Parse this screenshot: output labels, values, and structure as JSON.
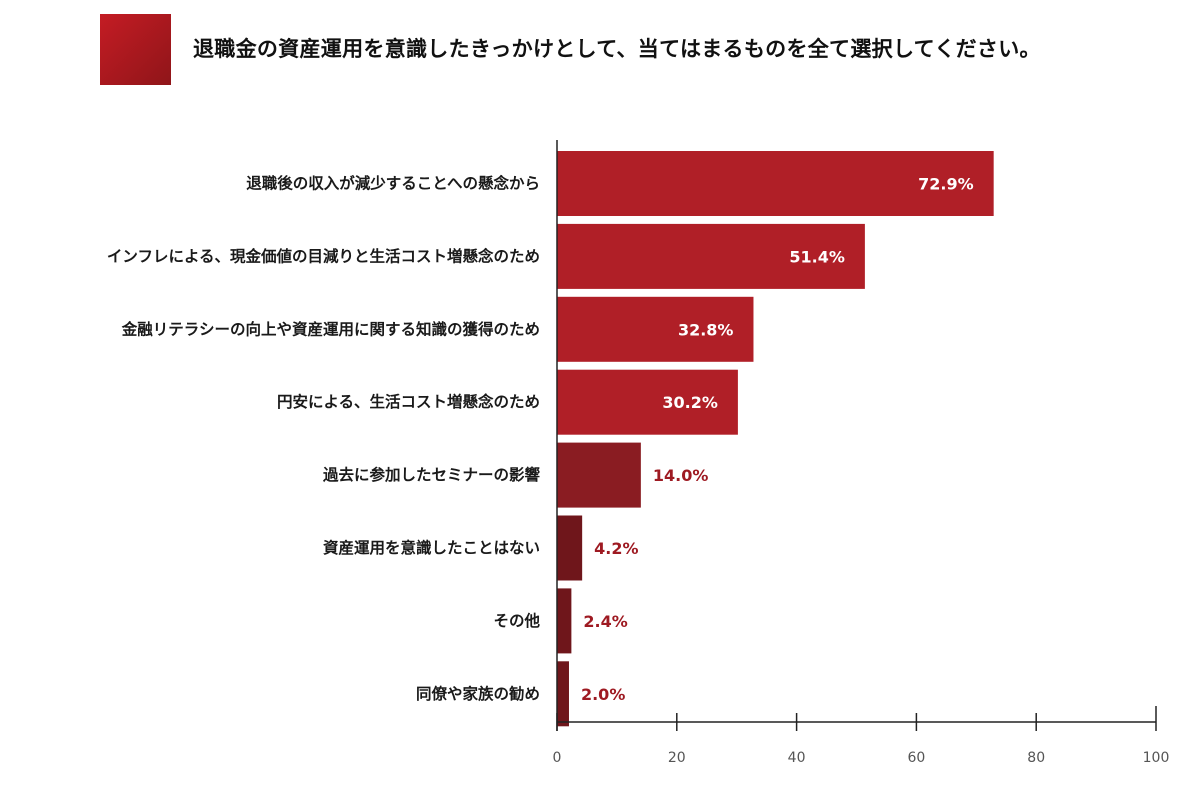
{
  "title": "退職金の資産運用を意識したきっかけとして、当てはまるものを全て選択してください。",
  "colors": {
    "bar_high": "#b01f27",
    "bar_mid": "#8a1c22",
    "bar_low": "#6f161b",
    "label_outside": "#9e1a22",
    "label_inside": "#ffffff",
    "title_square": "#b01f27"
  },
  "chart_data": {
    "type": "bar",
    "orientation": "horizontal",
    "categories": [
      "退職後の収入が減少することへの懸念から",
      "インフレによる、現金価値の目減りと生活コスト増懸念のため",
      "金融リテラシーの向上や資産運用に関する知識の獲得のため",
      "円安による、生活コスト増懸念のため",
      "過去に参加したセミナーの影響",
      "資産運用を意識したことはない",
      "その他",
      "同僚や家族の勧め"
    ],
    "values": [
      72.9,
      51.4,
      32.8,
      30.2,
      14.0,
      4.2,
      2.4,
      2.0
    ],
    "value_labels": [
      "72.9%",
      "51.4%",
      "32.8%",
      "30.2%",
      "14.0%",
      "4.2%",
      "2.4%",
      "2.0%"
    ],
    "xlim": [
      0,
      100
    ],
    "xticks": [
      0,
      20,
      40,
      60,
      80,
      100
    ],
    "xtick_labels": [
      "0",
      "20",
      "40",
      "60",
      "80",
      "100"
    ],
    "grid": false,
    "legend": "none"
  }
}
